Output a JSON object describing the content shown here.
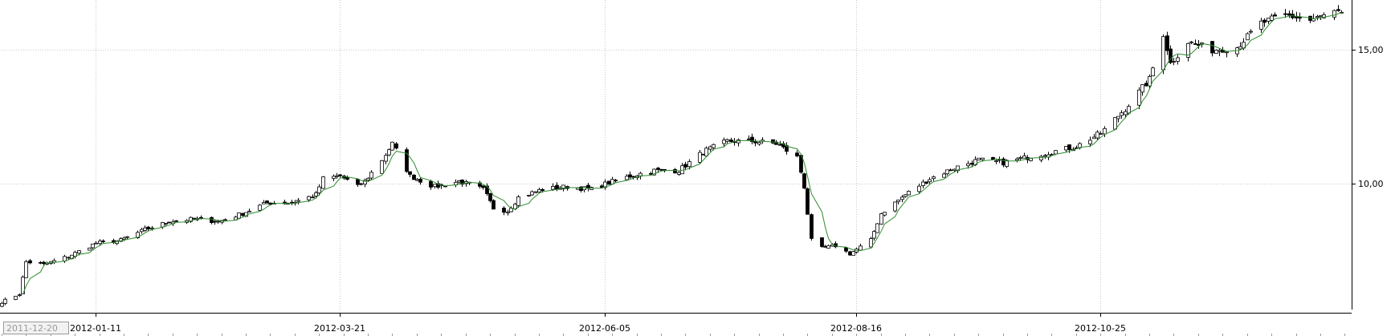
{
  "chart_data": {
    "type": "candlestick",
    "title": "",
    "xlabel": "",
    "ylabel": "",
    "y_axis_side": "right",
    "ylim": [
      5.2,
      16.8
    ],
    "xlim": [
      "2011-12-15",
      "2013-01-05"
    ],
    "grid": true,
    "y_ticks": [
      {
        "value": 10,
        "label": "10,00"
      },
      {
        "value": 15,
        "label": "15,00"
      }
    ],
    "x_ticks": [
      {
        "date": "2012-01-11",
        "label": "2012-01-11"
      },
      {
        "date": "2012-03-21",
        "label": "2012-03-21"
      },
      {
        "date": "2012-06-05",
        "label": "2012-06-05"
      },
      {
        "date": "2012-08-16",
        "label": "2012-08-16"
      },
      {
        "date": "2012-10-25",
        "label": "2012-10-25"
      }
    ],
    "cursor_date_label": "2011-12-20",
    "price_path": [
      [
        "2011-12-15",
        5.6
      ],
      [
        "2011-12-20",
        5.9
      ],
      [
        "2011-12-22",
        7.1
      ],
      [
        "2011-12-27",
        7.0
      ],
      [
        "2012-01-03",
        7.3
      ],
      [
        "2012-01-11",
        7.8
      ],
      [
        "2012-01-18",
        7.9
      ],
      [
        "2012-01-25",
        8.3
      ],
      [
        "2012-02-01",
        8.6
      ],
      [
        "2012-02-08",
        8.7
      ],
      [
        "2012-02-15",
        8.6
      ],
      [
        "2012-02-22",
        8.9
      ],
      [
        "2012-02-29",
        9.3
      ],
      [
        "2012-03-07",
        9.3
      ],
      [
        "2012-03-14",
        9.6
      ],
      [
        "2012-03-16",
        10.2
      ],
      [
        "2012-03-21",
        10.3
      ],
      [
        "2012-03-26",
        9.9
      ],
      [
        "2012-03-28",
        10.1
      ],
      [
        "2012-04-02",
        10.9
      ],
      [
        "2012-04-05",
        11.5
      ],
      [
        "2012-04-10",
        10.3
      ],
      [
        "2012-04-17",
        9.9
      ],
      [
        "2012-04-24",
        10.1
      ],
      [
        "2012-05-01",
        9.8
      ],
      [
        "2012-05-04",
        9.1
      ],
      [
        "2012-05-08",
        9.0
      ],
      [
        "2012-05-11",
        9.5
      ],
      [
        "2012-05-18",
        9.8
      ],
      [
        "2012-05-25",
        9.9
      ],
      [
        "2012-06-01",
        9.8
      ],
      [
        "2012-06-05",
        10.0
      ],
      [
        "2012-06-12",
        10.3
      ],
      [
        "2012-06-19",
        10.5
      ],
      [
        "2012-06-26",
        10.5
      ],
      [
        "2012-07-03",
        11.2
      ],
      [
        "2012-07-10",
        11.6
      ],
      [
        "2012-07-17",
        11.6
      ],
      [
        "2012-07-24",
        11.5
      ],
      [
        "2012-07-30",
        11.0
      ],
      [
        "2012-08-01",
        9.9
      ],
      [
        "2012-08-03",
        7.9
      ],
      [
        "2012-08-06",
        7.6
      ],
      [
        "2012-08-10",
        7.7
      ],
      [
        "2012-08-14",
        7.4
      ],
      [
        "2012-08-20",
        7.9
      ],
      [
        "2012-08-23",
        8.9
      ],
      [
        "2012-08-30",
        9.6
      ],
      [
        "2012-09-06",
        10.2
      ],
      [
        "2012-09-13",
        10.6
      ],
      [
        "2012-09-20",
        10.9
      ],
      [
        "2012-09-27",
        10.8
      ],
      [
        "2012-10-04",
        11.0
      ],
      [
        "2012-10-11",
        11.2
      ],
      [
        "2012-10-18",
        11.4
      ],
      [
        "2012-10-25",
        11.9
      ],
      [
        "2012-11-01",
        12.8
      ],
      [
        "2012-11-08",
        13.9
      ],
      [
        "2012-11-12",
        15.6
      ],
      [
        "2012-11-14",
        14.5
      ],
      [
        "2012-11-19",
        15.3
      ],
      [
        "2012-11-26",
        15.0
      ],
      [
        "2012-12-03",
        15.1
      ],
      [
        "2012-12-10",
        16.0
      ],
      [
        "2012-12-17",
        16.3
      ],
      [
        "2012-12-24",
        16.1
      ],
      [
        "2012-12-31",
        16.4
      ],
      [
        "2013-01-02",
        16.3
      ]
    ],
    "series": [
      {
        "kind": "ohlc",
        "color_up": "#ffffff",
        "color_down": "#000000",
        "wick_color": "#000000"
      },
      {
        "kind": "moving-average",
        "period": 5,
        "color": "#2e8b2e"
      }
    ]
  }
}
